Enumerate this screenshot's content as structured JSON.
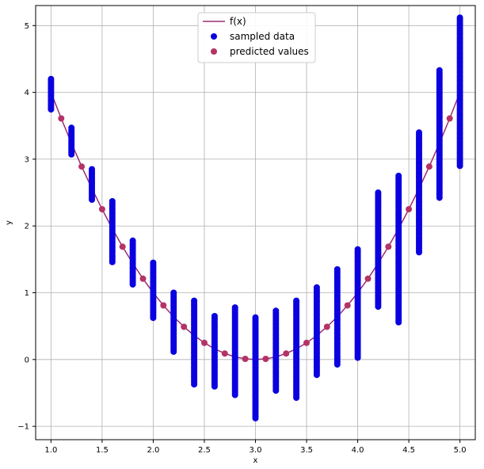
{
  "chart_data": {
    "type": "scatter",
    "xlabel": "x",
    "ylabel": "y",
    "xlim": [
      0.85,
      5.15
    ],
    "ylim": [
      -1.2,
      5.3
    ],
    "grid": true,
    "legend_placement": "top-center",
    "x_ticks": [
      1.0,
      1.5,
      2.0,
      2.5,
      3.0,
      3.5,
      4.0,
      4.5,
      5.0
    ],
    "x_tick_labels": [
      "1.0",
      "1.5",
      "2.0",
      "2.5",
      "3.0",
      "3.5",
      "4.0",
      "4.5",
      "5.0"
    ],
    "y_ticks": [
      -1,
      0,
      1,
      2,
      3,
      4,
      5
    ],
    "y_tick_labels": [
      "−1",
      "0",
      "1",
      "2",
      "3",
      "4",
      "5"
    ],
    "colors": {
      "line": "#9b2d74",
      "sampled": "#0a00e0",
      "predicted": "#b53366",
      "grid": "#b0b0b0"
    },
    "series": [
      {
        "name": "f(x)",
        "kind": "line",
        "x": [
          1.0,
          1.1,
          1.2,
          1.3,
          1.4,
          1.5,
          1.6,
          1.7,
          1.8,
          1.9,
          2.0,
          2.1,
          2.2,
          2.3,
          2.4,
          2.5,
          2.6,
          2.7,
          2.8,
          2.9,
          3.0,
          3.1,
          3.2,
          3.3,
          3.4,
          3.5,
          3.6,
          3.7,
          3.8,
          3.9,
          4.0,
          4.1,
          4.2,
          4.3,
          4.4,
          4.5,
          4.6,
          4.7,
          4.8,
          4.9,
          5.0
        ],
        "y": [
          4.0,
          3.61,
          3.24,
          2.89,
          2.56,
          2.25,
          1.96,
          1.69,
          1.44,
          1.21,
          1.0,
          0.81,
          0.64,
          0.49,
          0.36,
          0.25,
          0.16,
          0.09,
          0.04,
          0.01,
          0.0,
          0.01,
          0.04,
          0.09,
          0.16,
          0.25,
          0.36,
          0.49,
          0.64,
          0.81,
          1.0,
          1.21,
          1.44,
          1.69,
          1.96,
          2.25,
          2.56,
          2.89,
          3.24,
          3.61,
          4.0
        ]
      },
      {
        "name": "sampled data",
        "kind": "scatter",
        "columns": [
          {
            "x": 1.0,
            "ymin": 3.72,
            "ymax": 4.2
          },
          {
            "x": 1.2,
            "ymin": 3.05,
            "ymax": 3.47
          },
          {
            "x": 1.4,
            "ymin": 2.38,
            "ymax": 2.85
          },
          {
            "x": 1.6,
            "ymin": 1.45,
            "ymax": 2.37
          },
          {
            "x": 1.8,
            "ymin": 1.12,
            "ymax": 1.78
          },
          {
            "x": 2.0,
            "ymin": 0.62,
            "ymax": 1.45
          },
          {
            "x": 2.2,
            "ymin": 0.1,
            "ymax": 1.0
          },
          {
            "x": 2.4,
            "ymin": -0.38,
            "ymax": 0.88
          },
          {
            "x": 2.6,
            "ymin": -0.42,
            "ymax": 0.65
          },
          {
            "x": 2.8,
            "ymin": -0.55,
            "ymax": 0.78
          },
          {
            "x": 3.0,
            "ymin": -0.88,
            "ymax": 0.63
          },
          {
            "x": 3.2,
            "ymin": -0.48,
            "ymax": 0.73
          },
          {
            "x": 3.4,
            "ymin": -0.58,
            "ymax": 0.88
          },
          {
            "x": 3.6,
            "ymin": -0.25,
            "ymax": 1.08
          },
          {
            "x": 3.8,
            "ymin": -0.08,
            "ymax": 1.35
          },
          {
            "x": 4.0,
            "ymin": 0.0,
            "ymax": 1.65
          },
          {
            "x": 4.2,
            "ymin": 0.78,
            "ymax": 2.5
          },
          {
            "x": 4.4,
            "ymin": 0.55,
            "ymax": 2.75
          },
          {
            "x": 4.6,
            "ymin": 1.58,
            "ymax": 3.4
          },
          {
            "x": 4.8,
            "ymin": 2.42,
            "ymax": 4.33
          },
          {
            "x": 5.0,
            "ymin": 2.88,
            "ymax": 5.12
          }
        ]
      },
      {
        "name": "predicted values",
        "kind": "scatter",
        "x": [
          1.1,
          1.3,
          1.5,
          1.7,
          1.9,
          2.1,
          2.3,
          2.5,
          2.7,
          2.9,
          3.1,
          3.3,
          3.5,
          3.7,
          3.9,
          4.1,
          4.3,
          4.5,
          4.7,
          4.9
        ],
        "y": [
          3.61,
          2.89,
          2.25,
          1.69,
          1.21,
          0.81,
          0.49,
          0.25,
          0.09,
          0.01,
          0.01,
          0.09,
          0.25,
          0.49,
          0.81,
          1.21,
          1.69,
          2.25,
          2.89,
          3.61
        ]
      }
    ]
  }
}
